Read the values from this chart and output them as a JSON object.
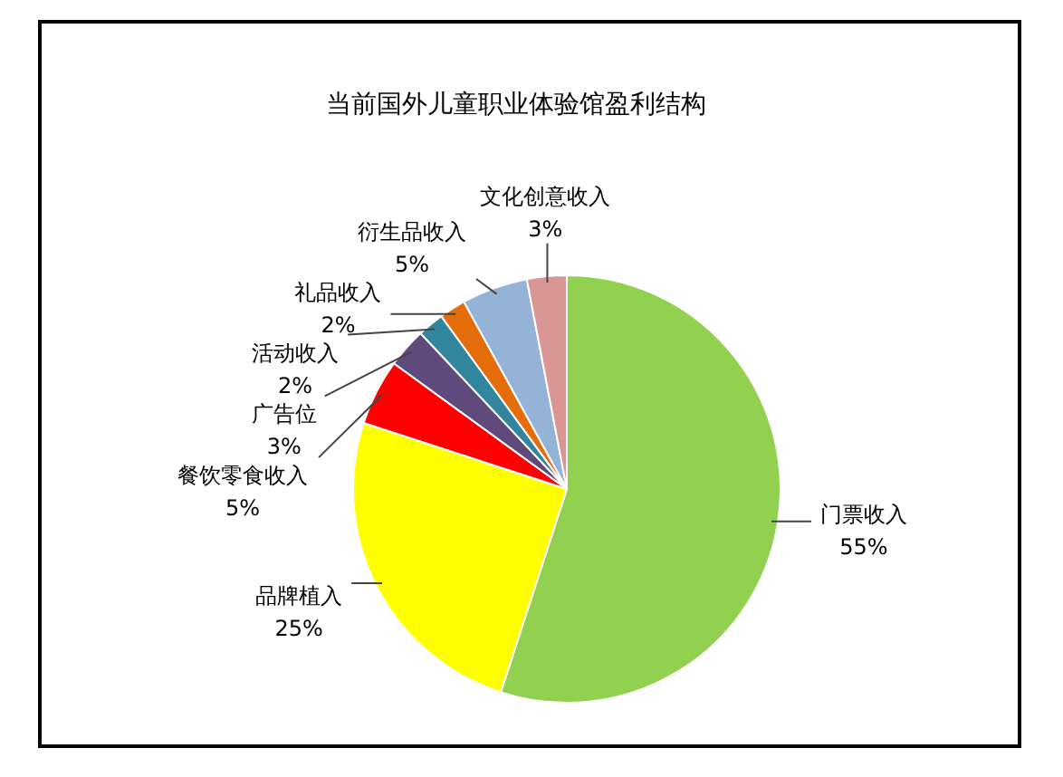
{
  "chart_data": {
    "type": "pie",
    "title": "当前国外儿童职业体验馆盈利结构",
    "categories": [
      "门票收入",
      "品牌植入",
      "餐饮零食收入",
      "广告位",
      "活动收入",
      "礼品收入",
      "衍生品收入",
      "文化创意收入"
    ],
    "values": [
      55,
      25,
      5,
      3,
      2,
      2,
      5,
      3
    ],
    "colors": [
      "#92d050",
      "#ffff00",
      "#ff0000",
      "#604a7b",
      "#31859c",
      "#e46c0a",
      "#95b3d7",
      "#d99694"
    ],
    "value_labels": [
      "55%",
      "25%",
      "5%",
      "3%",
      "2%",
      "2%",
      "5%",
      "3%"
    ],
    "legend": false
  }
}
